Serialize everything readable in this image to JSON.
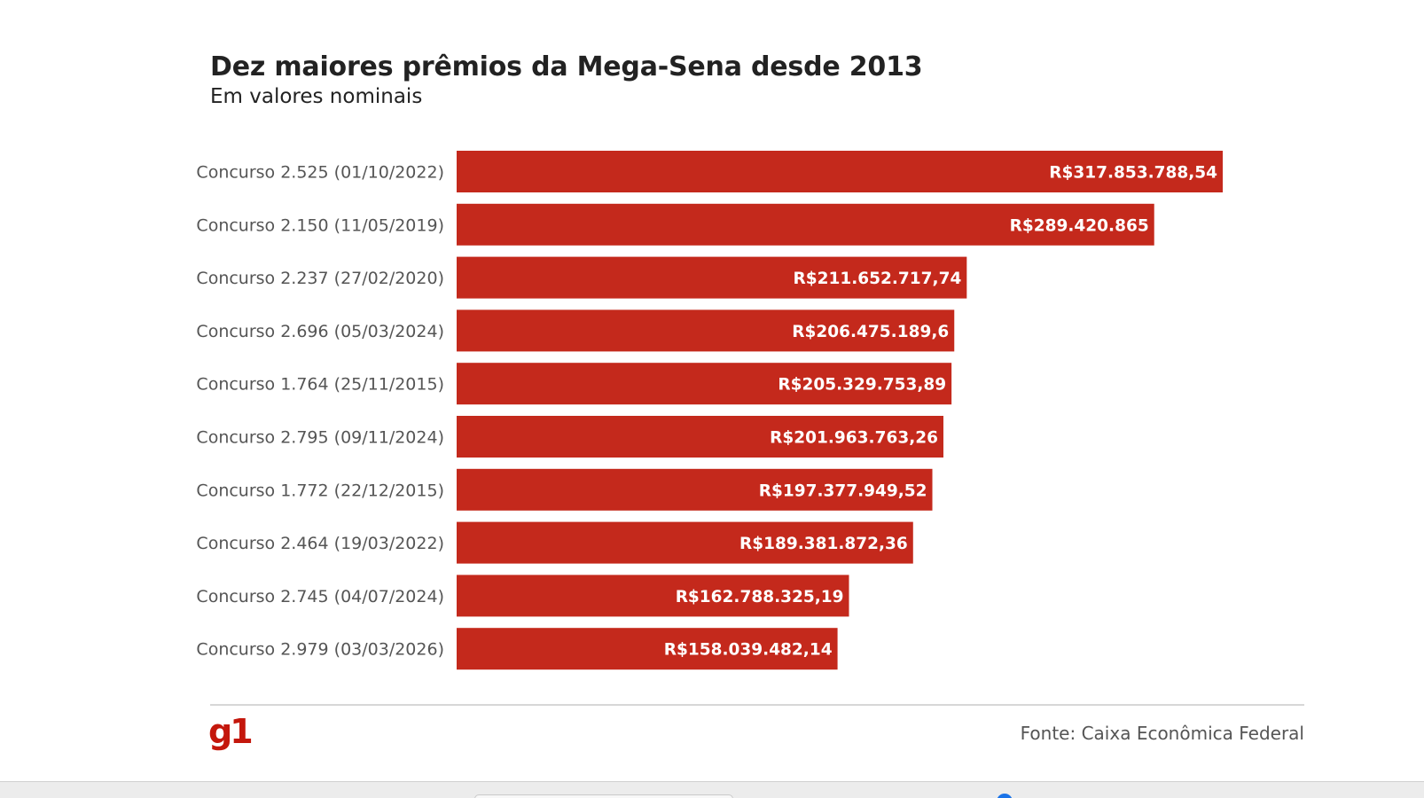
{
  "header": {
    "title": "Dez maiores prêmios da Mega-Sena desde 2013",
    "subtitle": "Em valores nominais"
  },
  "footer": {
    "logo_text": "g1",
    "source": "Fonte: Caixa Econômica Federal"
  },
  "colors": {
    "bar": "#c4291c",
    "brand": "#c4170c"
  },
  "chart_data": {
    "type": "bar",
    "orientation": "horizontal",
    "title": "Dez maiores prêmios da Mega-Sena desde 2013",
    "subtitle": "Em valores nominais",
    "xlabel": "",
    "ylabel": "",
    "grid": false,
    "categories": [
      "Concurso 2.525 (01/10/2022)",
      "Concurso 2.150 (11/05/2019)",
      "Concurso 2.237 (27/02/2020)",
      "Concurso 2.696 (05/03/2024)",
      "Concurso 1.764 (25/11/2015)",
      "Concurso 2.795 (09/11/2024)",
      "Concurso 1.772 (22/12/2015)",
      "Concurso 2.464 (19/03/2022)",
      "Concurso 2.745 (04/07/2024)",
      "Concurso 2.979 (03/03/2026)"
    ],
    "values": [
      317853788.54,
      289420865,
      211652717.74,
      206475189.6,
      205329753.89,
      201963763.26,
      197377949.52,
      189381872.36,
      162788325.19,
      158039482.14
    ],
    "value_labels": [
      "R$317.853.788,54",
      "R$289.420.865",
      "R$211.652.717,74",
      "R$206.475.189,6",
      "R$205.329.753,89",
      "R$201.963.763,26",
      "R$197.377.949,52",
      "R$189.381.872,36",
      "R$162.788.325,19",
      "R$158.039.482,14"
    ]
  }
}
